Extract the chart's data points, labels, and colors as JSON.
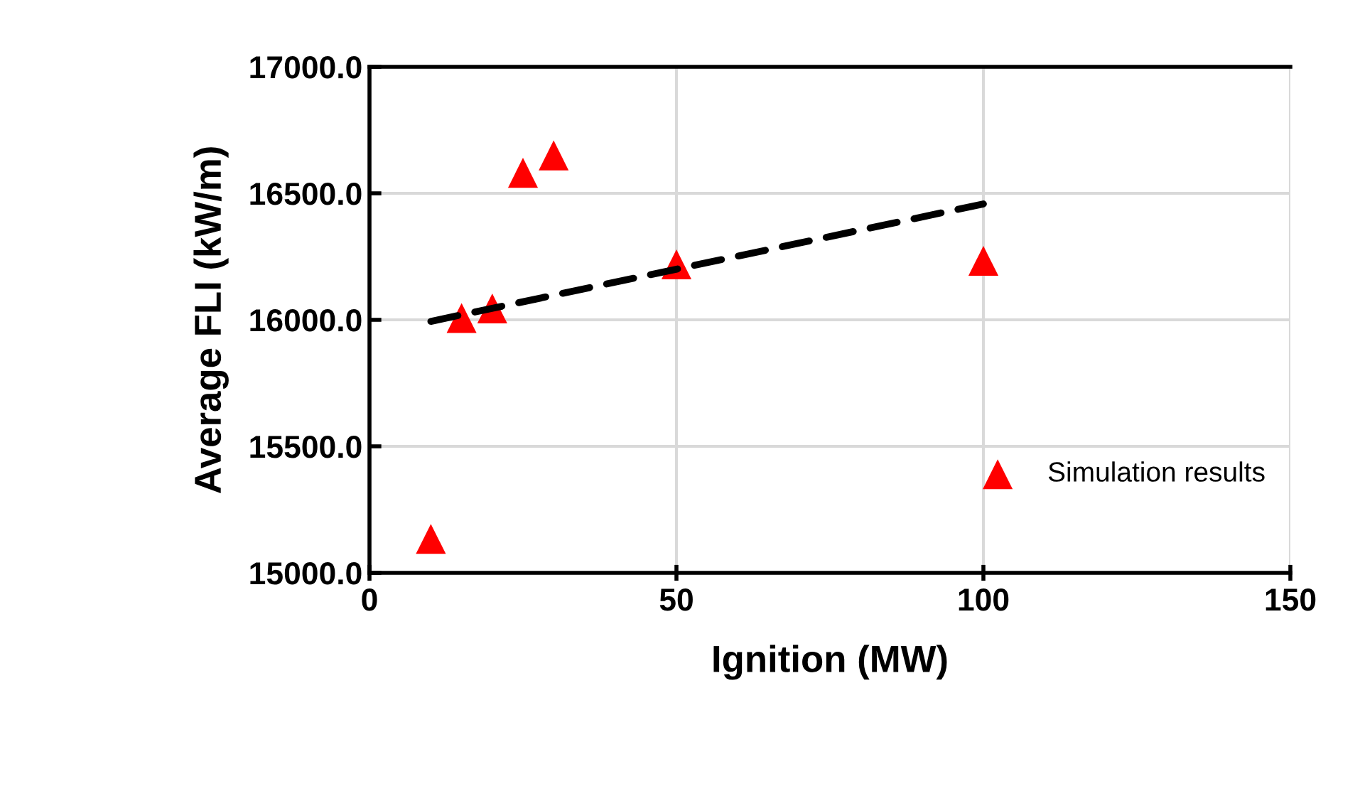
{
  "chart_data": {
    "type": "scatter",
    "xlabel": "Ignition (MW)",
    "ylabel": "Average FLI (kW/m)",
    "xlim": [
      0,
      150
    ],
    "xticks": [
      0,
      50,
      100,
      150
    ],
    "ylim": [
      15000,
      17000
    ],
    "yticks": [
      {
        "value": 15000,
        "label": "15000.0"
      },
      {
        "value": 15500,
        "label": "15500.0"
      },
      {
        "value": 16000,
        "label": "16000.0"
      },
      {
        "value": 16500,
        "label": "16500.0"
      },
      {
        "value": 17000,
        "label": "17000.0"
      }
    ],
    "grid": true,
    "legend": "bottom right",
    "marker": "triangle",
    "series": [
      {
        "name": "Simulation results",
        "color": "#ff0000",
        "x": [
          10,
          15,
          20,
          25,
          30,
          50,
          100
        ],
        "values": [
          15134,
          16007,
          16045,
          16581,
          16650,
          16219,
          16233
        ]
      },
      {
        "type": "line",
        "color": "#000000",
        "line_style": "dashed",
        "marker": "none",
        "x": [
          10,
          100
        ],
        "values": [
          15994,
          16458
        ]
      }
    ]
  }
}
